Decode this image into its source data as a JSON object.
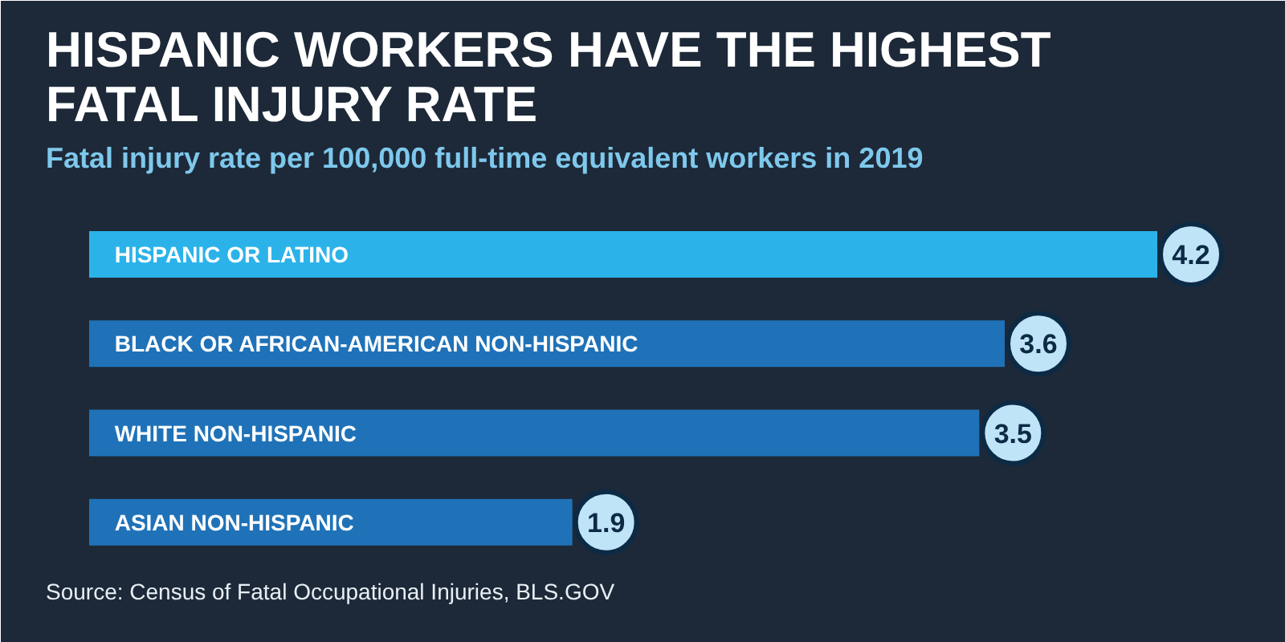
{
  "chart_data": {
    "type": "bar",
    "orientation": "horizontal",
    "title": "HISPANIC WORKERS HAVE THE HIGHEST FATAL INJURY RATE",
    "subtitle": "Fatal injury rate per 100,000 full-time equivalent workers in 2019",
    "categories": [
      "HISPANIC OR LATINO",
      "BLACK OR AFRICAN-AMERICAN NON-HISPANIC",
      "WHITE NON-HISPANIC",
      "ASIAN NON-HISPANIC"
    ],
    "values": [
      4.2,
      3.6,
      3.5,
      1.9
    ],
    "colors": [
      "#2bb3e9",
      "#1f72b8",
      "#1f72b8",
      "#1f72b8"
    ],
    "data_labels": true,
    "annotations": [
      "Source: Census of Fatal Occupational Injuries, BLS.GOV"
    ]
  }
}
